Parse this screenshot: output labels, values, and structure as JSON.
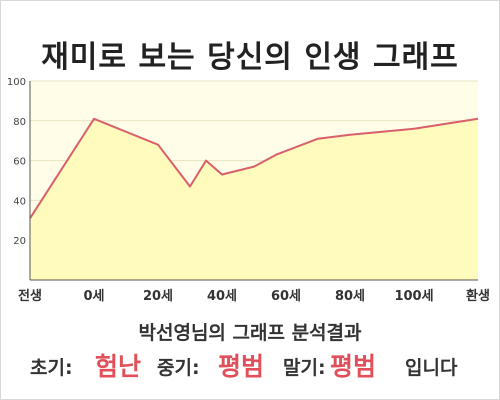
{
  "title": "재미로 보는 당신의 인생 그래프",
  "chart_data": {
    "type": "area",
    "x": [
      -20,
      0,
      20,
      30,
      35,
      40,
      50,
      57,
      70,
      80,
      100,
      120
    ],
    "values": [
      31,
      81,
      68,
      47,
      60,
      53,
      57,
      63,
      71,
      73,
      76,
      81
    ],
    "xlim": [
      -20,
      120
    ],
    "ylim": [
      0,
      100
    ],
    "yticks": [
      20,
      40,
      60,
      80,
      100
    ],
    "y_ticks_labels": [
      "20",
      "40",
      "60",
      "80",
      "100"
    ],
    "xtick_labels": [
      {
        "x": -20,
        "label": "전생"
      },
      {
        "x": 0,
        "label": "0세"
      },
      {
        "x": 20,
        "label": "20세"
      },
      {
        "x": 40,
        "label": "40세"
      },
      {
        "x": 60,
        "label": "60세"
      },
      {
        "x": 80,
        "label": "80세"
      },
      {
        "x": 100,
        "label": "100세"
      },
      {
        "x": 120,
        "label": "환생"
      }
    ],
    "grid": true,
    "colors": {
      "background": "#fffde8",
      "fill": "#fffbbd",
      "line": "#d9606a",
      "grid": "#e8e2c0",
      "axis": "#555555"
    }
  },
  "result": {
    "title": "박선영님의 그래프 분석결과",
    "early_label": "초기:",
    "early_value": "험난",
    "middle_label": "중기:",
    "middle_value": "평범",
    "late_label": "말기:",
    "late_value": "평범",
    "suffix": "입니다"
  }
}
